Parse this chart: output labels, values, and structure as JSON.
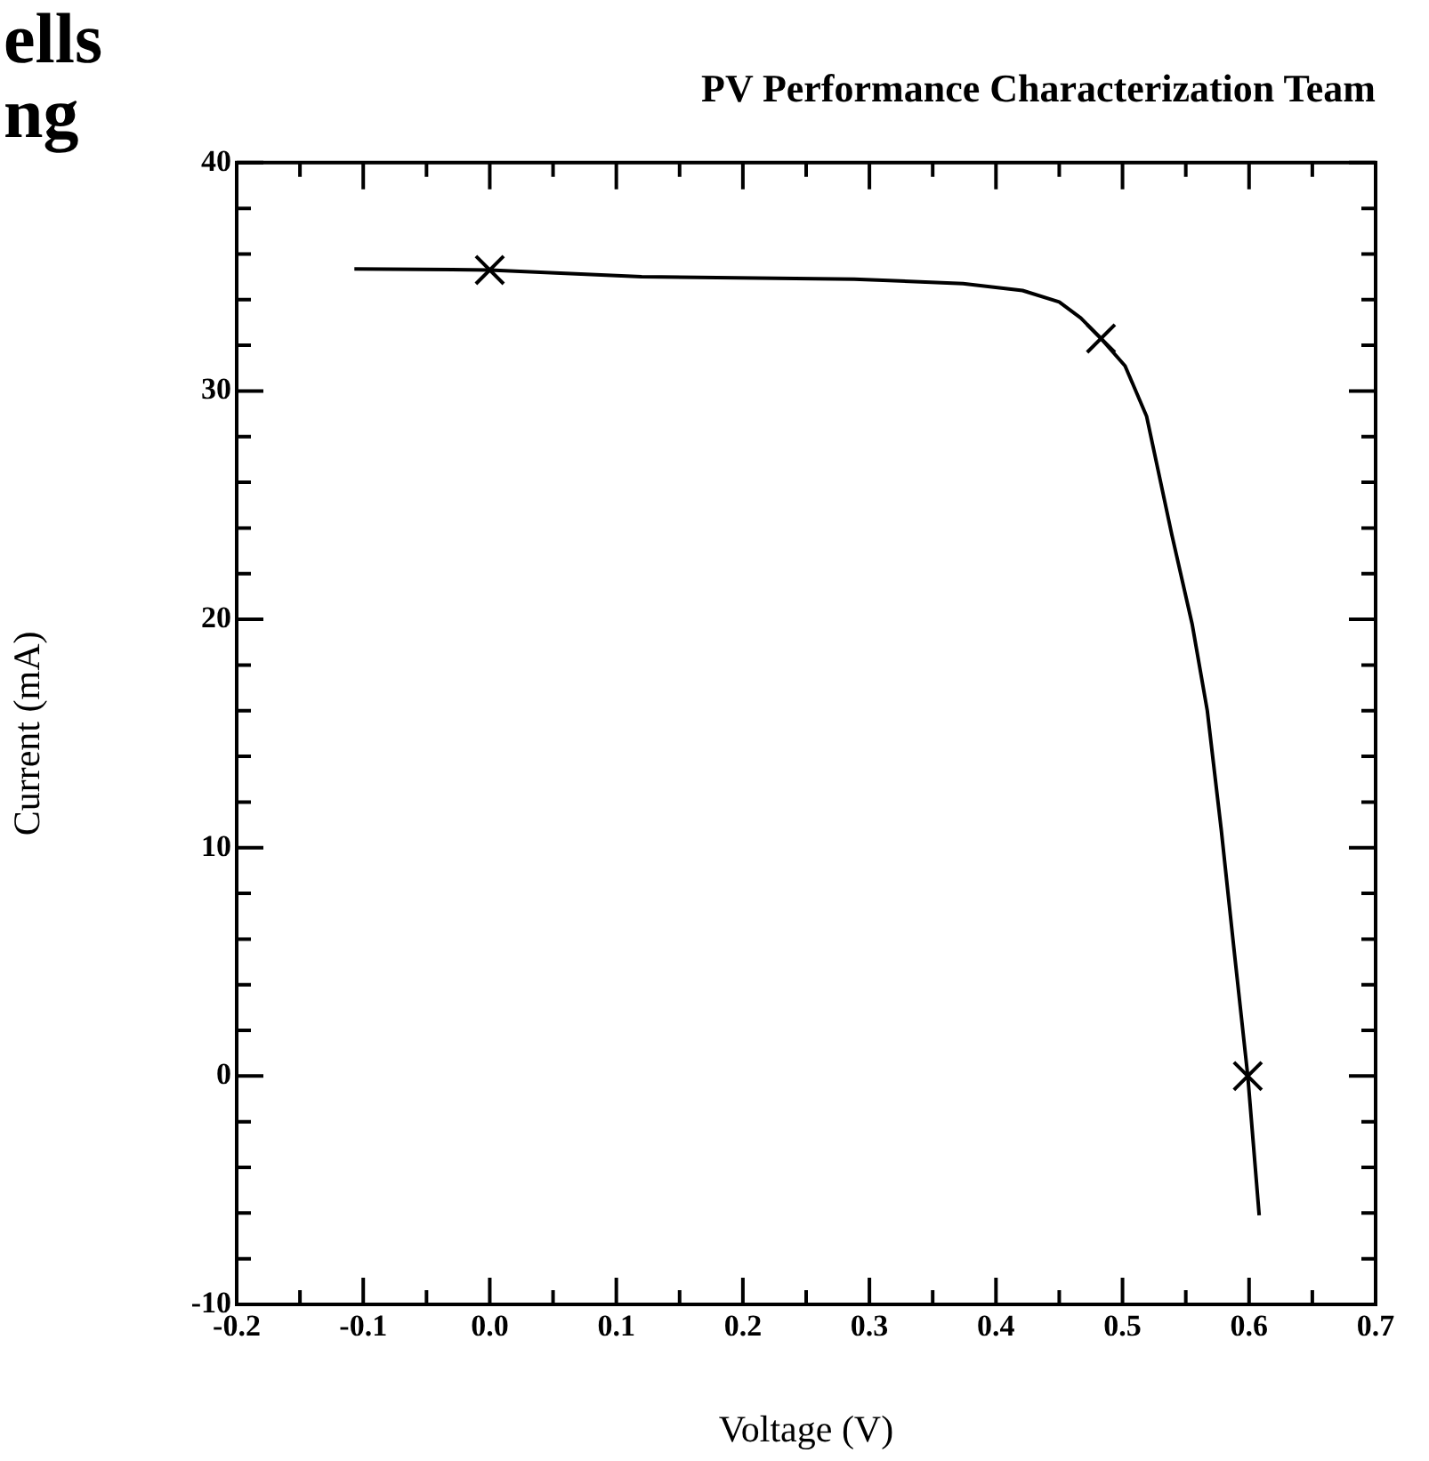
{
  "chart_data": {
    "type": "line",
    "title": "PV Performance Characterization Team",
    "xlabel": "Voltage (V)",
    "ylabel": "Current (mA)",
    "annotations": [
      "ells",
      "ng"
    ],
    "xlim": [
      -0.2,
      0.7
    ],
    "ylim": [
      -10,
      40
    ],
    "xticks": [
      -0.2,
      {
        "value": -0.15,
        "label": null
      },
      {
        "value": -0.1,
        "label": "-0.1"
      },
      {
        "value": -0.05,
        "label": null
      },
      {
        "value": 0,
        "label": "0.0"
      },
      {
        "value": 0.05,
        "label": null
      },
      0.1,
      {
        "value": 0.15,
        "label": null
      },
      0.2,
      {
        "value": 0.25,
        "label": null
      },
      0.3,
      {
        "value": 0.35,
        "label": null
      },
      0.4,
      {
        "value": 0.45,
        "label": null
      },
      0.5,
      {
        "value": 0.55,
        "label": null
      },
      0.6,
      {
        "value": 0.65,
        "label": null
      },
      0.7
    ],
    "yticks": [
      -10,
      {
        "value": -8,
        "label": null
      },
      {
        "value": -6,
        "label": null
      },
      {
        "value": -4,
        "label": null
      },
      {
        "value": -2,
        "label": null
      },
      0,
      {
        "value": 2,
        "label": null
      },
      {
        "value": 4,
        "label": null
      },
      {
        "value": 6,
        "label": null
      },
      {
        "value": 8,
        "label": null
      },
      10,
      {
        "value": 12,
        "label": null
      },
      {
        "value": 14,
        "label": null
      },
      {
        "value": 16,
        "label": null
      },
      {
        "value": 18,
        "label": null
      },
      20,
      {
        "value": 22,
        "label": null
      },
      {
        "value": 24,
        "label": null
      },
      {
        "value": 26,
        "label": null
      },
      {
        "value": 28,
        "label": null
      },
      30,
      {
        "value": 32,
        "label": null
      },
      {
        "value": 34,
        "label": null
      },
      {
        "value": 36,
        "label": null
      },
      {
        "value": 38,
        "label": null
      },
      40
    ],
    "grid": false,
    "legend": false,
    "series": [
      {
        "color": "#000000",
        "marker": "none",
        "x": [
          -0.107,
          0.0,
          0.12,
          0.288,
          0.374,
          0.421,
          0.45,
          0.467,
          0.483,
          0.502,
          0.519,
          0.539,
          0.555,
          0.567,
          0.578,
          0.588,
          0.599,
          0.608
        ],
        "values": [
          35.35,
          35.3,
          35.0,
          34.9,
          34.7,
          34.4,
          33.9,
          33.2,
          32.3,
          31.1,
          28.9,
          23.7,
          19.8,
          16.0,
          10.8,
          5.6,
          0.0,
          -6.1
        ]
      },
      {
        "type": "scatter",
        "color": "#000000",
        "marker": "cross",
        "x": [
          0.0,
          0.483,
          0.599
        ],
        "values": [
          35.3,
          32.3,
          0.0
        ]
      }
    ]
  }
}
